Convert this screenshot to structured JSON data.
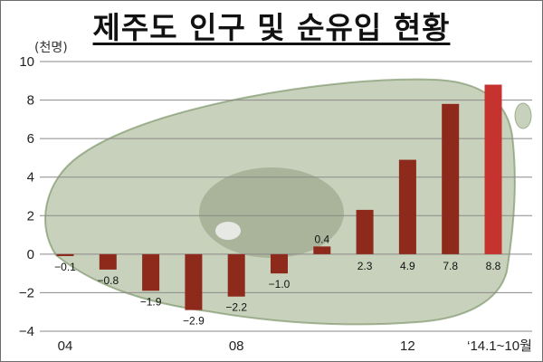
{
  "title": "제주도 인구 및 순유입 현황",
  "colors": {
    "bar": "#8e2a1c",
    "bar_last": "#c6322d",
    "grid": "#8a8a8a",
    "island": "#9aab84",
    "island_edge": "#6f8a5c"
  },
  "chart_data": {
    "type": "bar",
    "title": "제주도 인구 및 순유입 현황",
    "ylabel": "(천명)",
    "xlabel": "",
    "ylim": [
      -4,
      10
    ],
    "yticks": [
      "10",
      "8",
      "6",
      "4",
      "2",
      "0",
      "−2",
      "−4"
    ],
    "ytick_values": [
      10,
      8,
      6,
      4,
      2,
      0,
      -2,
      -4
    ],
    "grid": true,
    "x_tick_labels": [
      "04",
      "08",
      "12",
      "‘14.1~10월"
    ],
    "categories": [
      "2004",
      "2005",
      "2006",
      "2007",
      "2008",
      "2009",
      "2010",
      "2011",
      "2012",
      "2013",
      "2014.1~10"
    ],
    "values": [
      -0.1,
      -0.8,
      -1.9,
      -2.9,
      -2.2,
      -1.0,
      0.4,
      2.3,
      4.9,
      7.8,
      8.8
    ],
    "value_labels": [
      "−0.1",
      "−0.8",
      "−1.9",
      "−2.9",
      "−2.2",
      "−1.0",
      "0.4",
      "2.3",
      "4.9",
      "7.8",
      "8.8"
    ],
    "background": "Jeju island map"
  }
}
